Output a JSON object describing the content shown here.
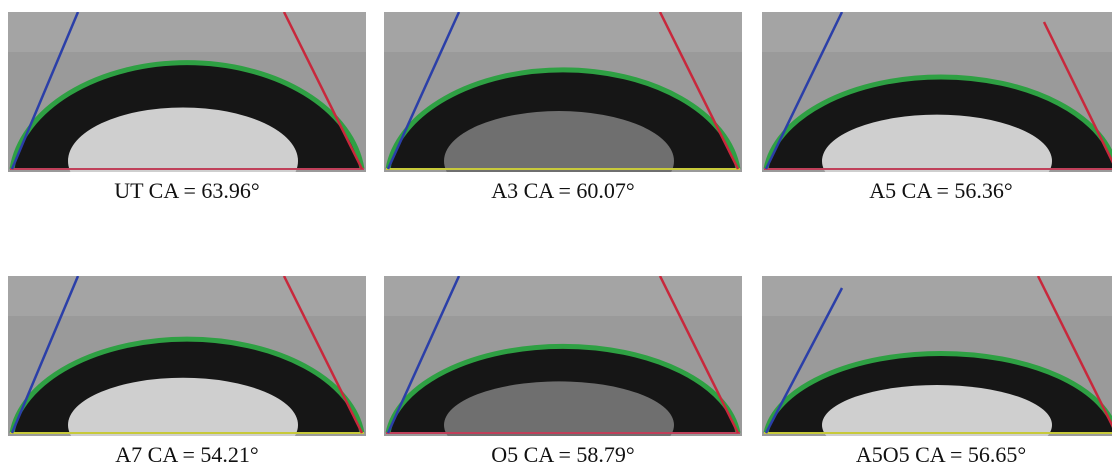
{
  "panels": [
    {
      "caption": "UT CA = 63.96°"
    },
    {
      "caption": "A3 CA = 60.07°"
    },
    {
      "caption": "A5 CA = 56.36°"
    },
    {
      "caption": "A7 CA = 54.21°"
    },
    {
      "caption": "O5 CA = 58.79°"
    },
    {
      "caption": "A5O5 CA = 56.65°"
    }
  ]
}
